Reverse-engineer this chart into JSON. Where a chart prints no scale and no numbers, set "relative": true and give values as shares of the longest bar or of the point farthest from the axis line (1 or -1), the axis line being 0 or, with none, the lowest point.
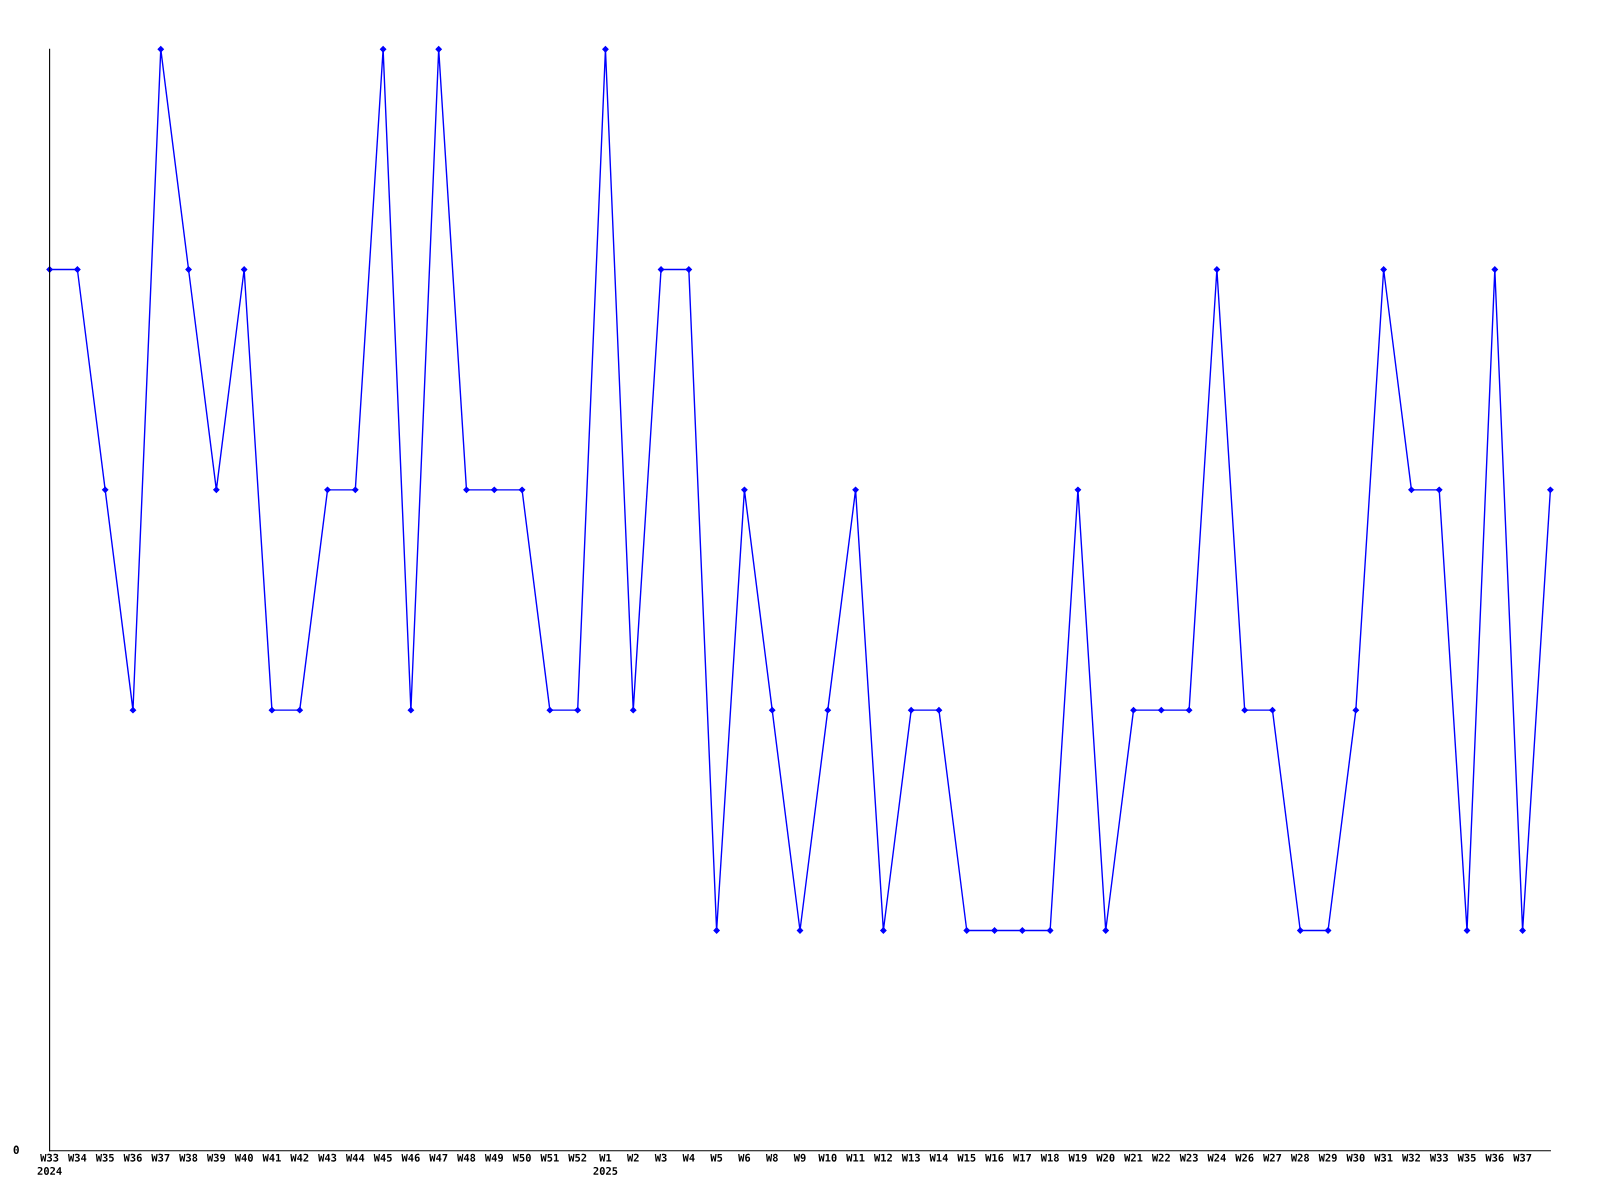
{
  "chart_data": {
    "type": "line",
    "relative": true,
    "annotations": [
      "0"
    ],
    "grid": false,
    "marker": "diamond",
    "line_style": "solid",
    "categories": [
      "W33\n2024",
      "W34",
      "W35",
      "W36",
      "W37",
      "W38",
      "W39",
      "W40",
      "W41",
      "W42",
      "W43",
      "W44",
      "W45",
      "W46",
      "W47",
      "W48",
      "W49",
      "W50",
      "W51",
      "W52",
      "W1\n2025",
      "W2",
      "W3",
      "W4",
      "W5",
      "W6",
      "W8",
      "W9",
      "W10",
      "W11",
      "W12",
      "W13",
      "W14",
      "W15",
      "W16",
      "W17",
      "W18",
      "W19",
      "W20",
      "W21",
      "W22",
      "W23",
      "W24",
      "W26",
      "W27",
      "W28",
      "W29",
      "W30",
      "W31",
      "W32",
      "W33",
      "W35",
      "W36",
      "W37",
      null
    ],
    "series": [
      {
        "color": "#0000ff",
        "values": [
          0.8,
          0.8,
          0.6,
          0.4,
          1,
          0.8,
          0.6,
          0.8,
          0.4,
          0.4,
          0.6,
          0.6,
          1,
          0.4,
          1,
          0.6,
          0.6,
          0.6,
          0.4,
          0.4,
          1,
          0.4,
          0.8,
          0.8,
          0.2,
          0.6,
          0.4,
          0.2,
          0.4,
          0.6,
          0.2,
          0.4,
          0.4,
          0.2,
          0.2,
          0.2,
          0.2,
          0.6,
          0.2,
          0.4,
          0.4,
          0.4,
          0.8,
          0.4,
          0.4,
          0.2,
          0.2,
          0.4,
          0.8,
          0.6,
          0.6,
          0.2,
          0.8,
          0.2,
          0.6
        ]
      }
    ]
  }
}
